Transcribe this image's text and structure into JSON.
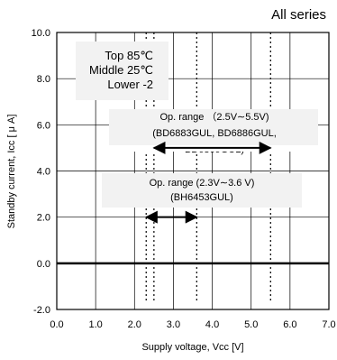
{
  "header": {
    "series_label": "All series"
  },
  "chart_data": {
    "type": "line",
    "xlabel": "Supply voltage, Vcc [V]",
    "ylabel": "Standby current, Icc [ μ A]",
    "xlim": [
      0.0,
      7.0
    ],
    "ylim": [
      -2.0,
      10.0
    ],
    "x_ticks": [
      "0.0",
      "1.0",
      "2.0",
      "3.0",
      "4.0",
      "5.0",
      "6.0",
      "7.0"
    ],
    "y_ticks": [
      "-2.0",
      "0.0",
      "2.0",
      "4.0",
      "6.0",
      "8.0",
      "10.0"
    ],
    "grid": true,
    "series": [
      {
        "x": [
          0.0,
          7.0
        ],
        "y": [
          0.0,
          0.0
        ]
      }
    ],
    "legend": [
      "Top 85℃",
      "Middle 25℃",
      "Lower -2"
    ],
    "annotations": {
      "range1": {
        "lines": [
          "Op. range （2.5V∼5.5V)",
          "(BD6883GUL, BD6886GUL,",
          "BD6369GUL)"
        ],
        "from": 2.5,
        "to": 5.5,
        "y": 5.0
      },
      "range2": {
        "lines": [
          "Op. range (2.3V∼3.6 V)",
          "(BH6453GUL)"
        ],
        "from": 2.3,
        "to": 3.6,
        "y": 2.0
      },
      "markers_x": [
        2.3,
        2.5,
        3.6,
        5.5
      ]
    }
  }
}
